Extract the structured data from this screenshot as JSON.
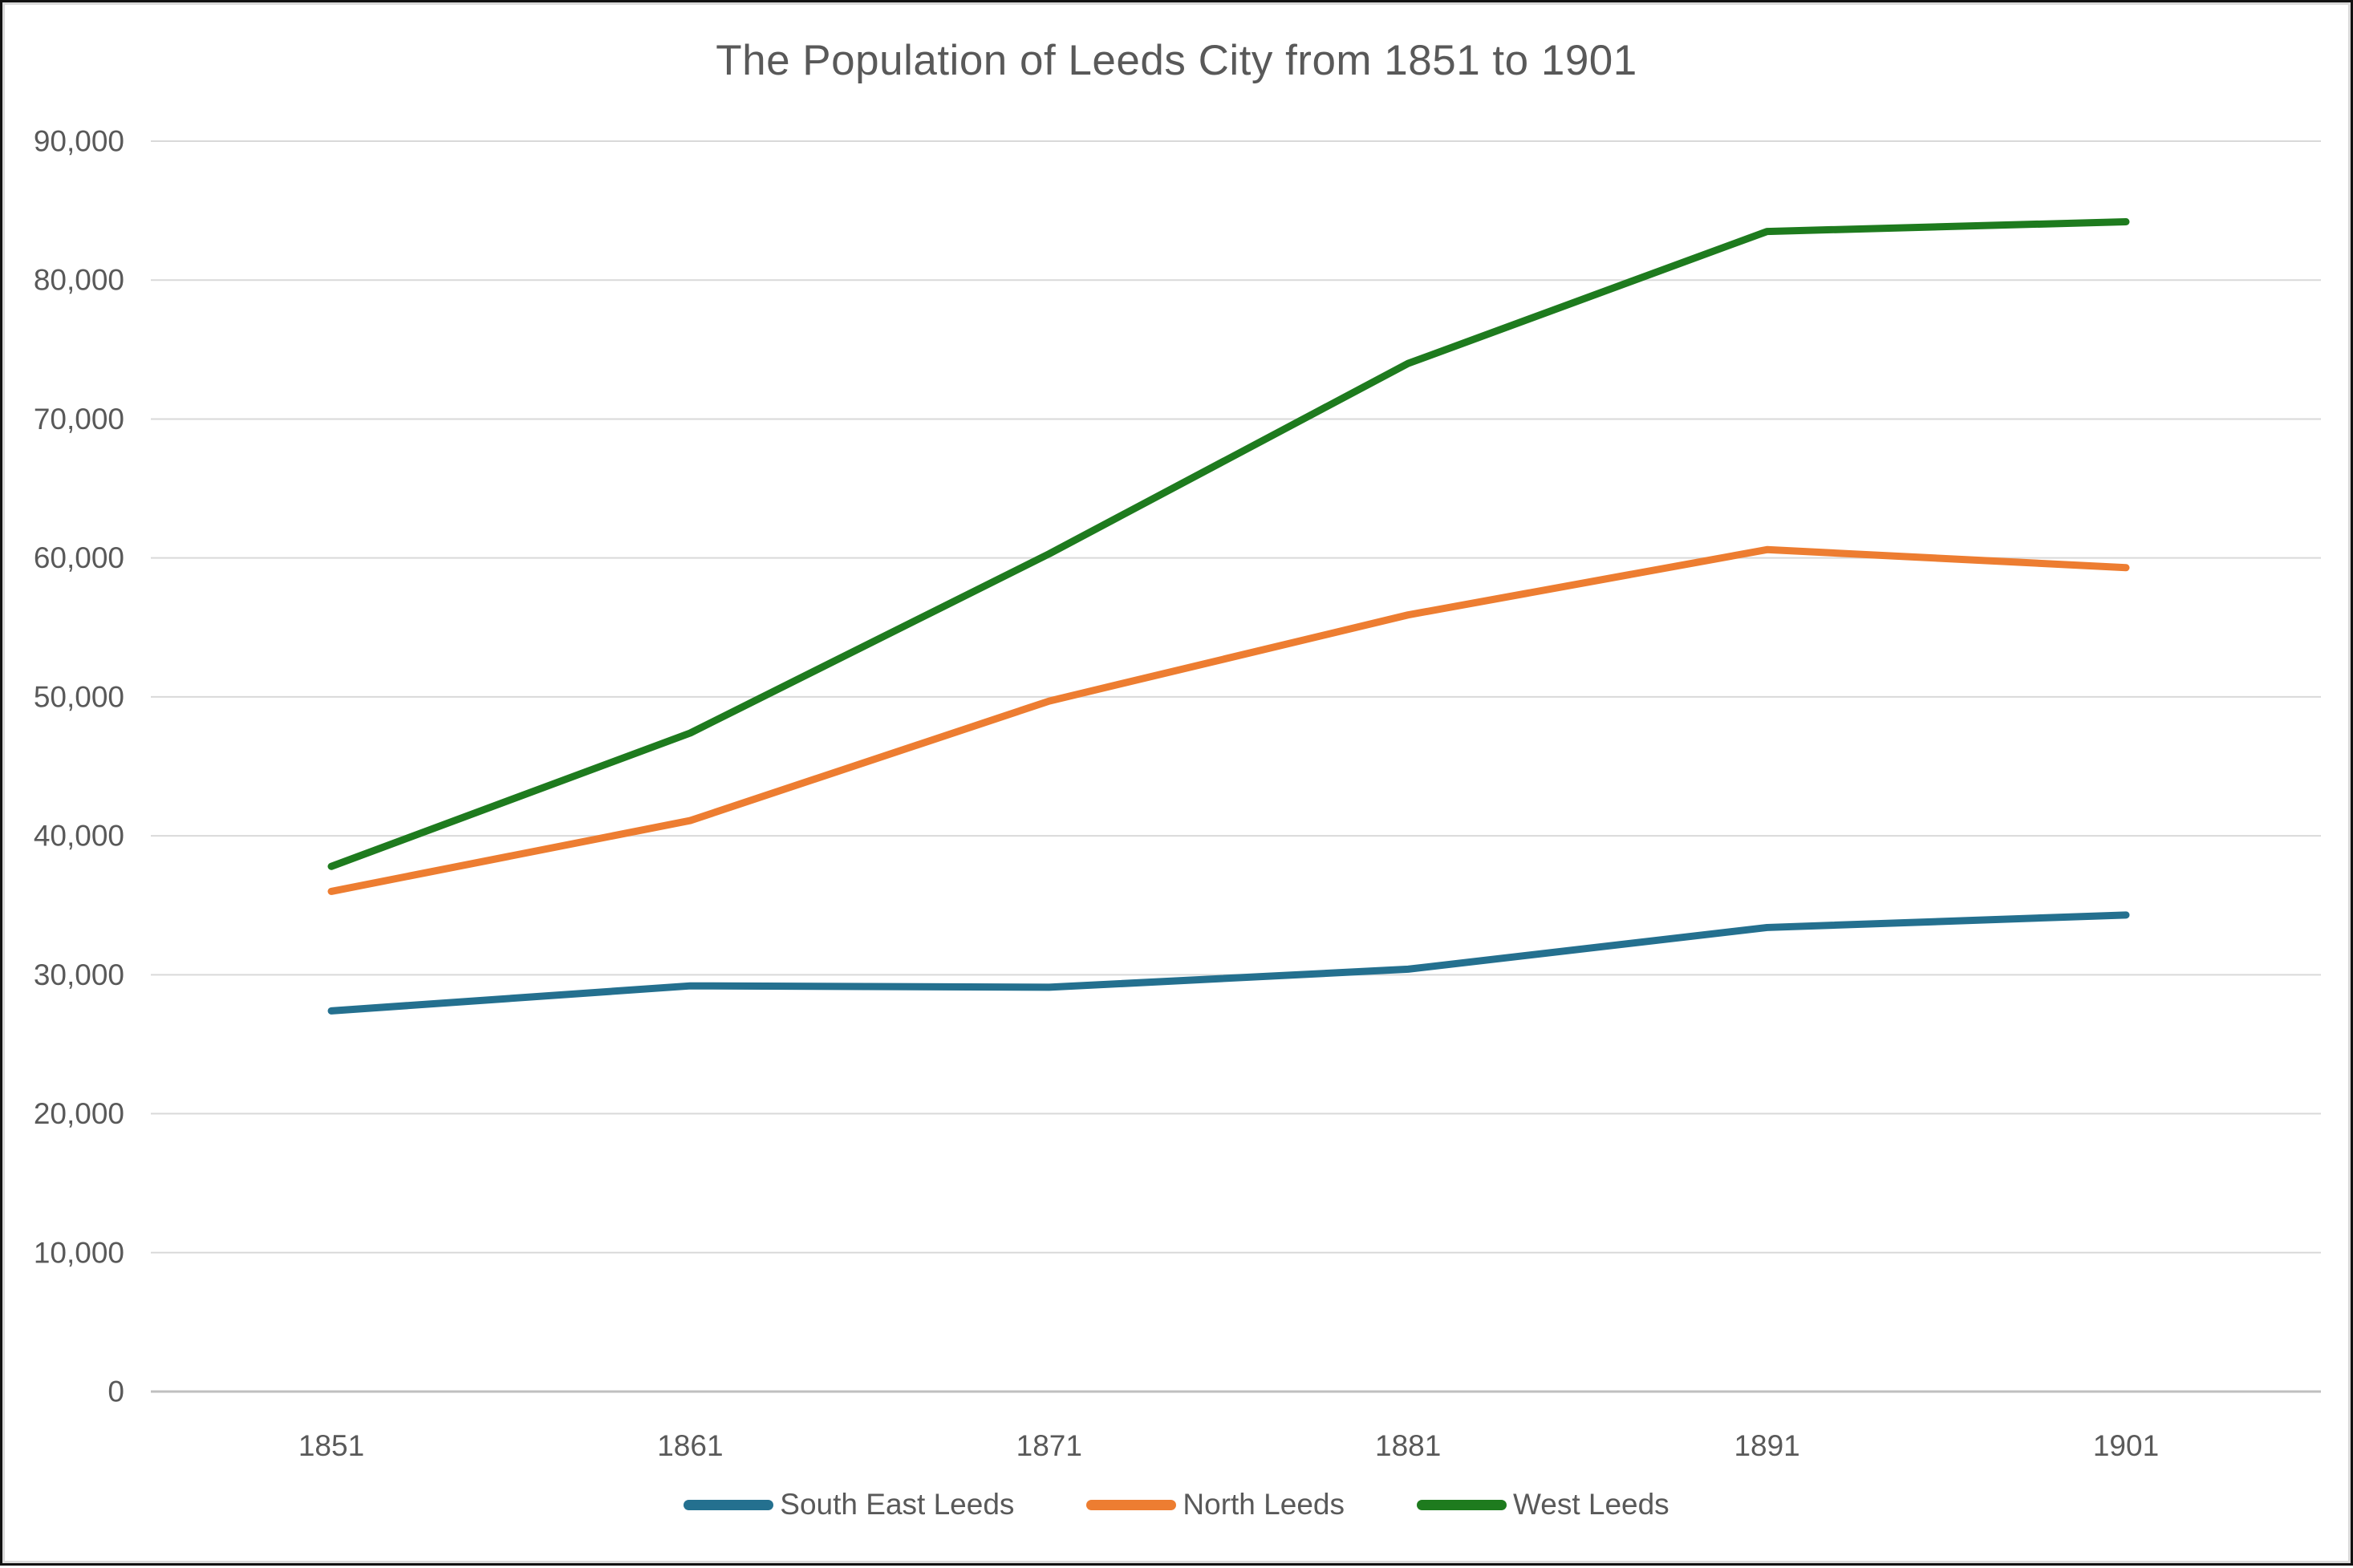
{
  "chart_data": {
    "type": "line",
    "title": "The Population of Leeds City from 1851 to 1901",
    "categories": [
      "1851",
      "1861",
      "1871",
      "1881",
      "1891",
      "1901"
    ],
    "series": [
      {
        "name": "South East Leeds",
        "color": "#24708F",
        "values": [
          27400,
          29200,
          29100,
          30400,
          33400,
          34300
        ]
      },
      {
        "name": "North Leeds",
        "color": "#ED7D31",
        "values": [
          36000,
          41100,
          49700,
          55900,
          60600,
          59300
        ]
      },
      {
        "name": "West Leeds",
        "color": "#1E7B1E",
        "values": [
          37800,
          47400,
          60300,
          74000,
          83500,
          84200
        ]
      }
    ],
    "xlabel": "",
    "ylabel": "",
    "ylim": [
      0,
      90000
    ],
    "ytick_step": 10000,
    "ytick_labels": [
      "0",
      "10,000",
      "20,000",
      "30,000",
      "40,000",
      "50,000",
      "60,000",
      "70,000",
      "80,000",
      "90,000"
    ],
    "grid": "horizontal gridlines on",
    "legend_position": "bottom"
  },
  "styles": {
    "text_color": "#595959",
    "grid_color": "#D9D9D9",
    "axis_line_color": "#BFBFBF",
    "background": "#FFFFFF",
    "frame_color": "#121212"
  }
}
